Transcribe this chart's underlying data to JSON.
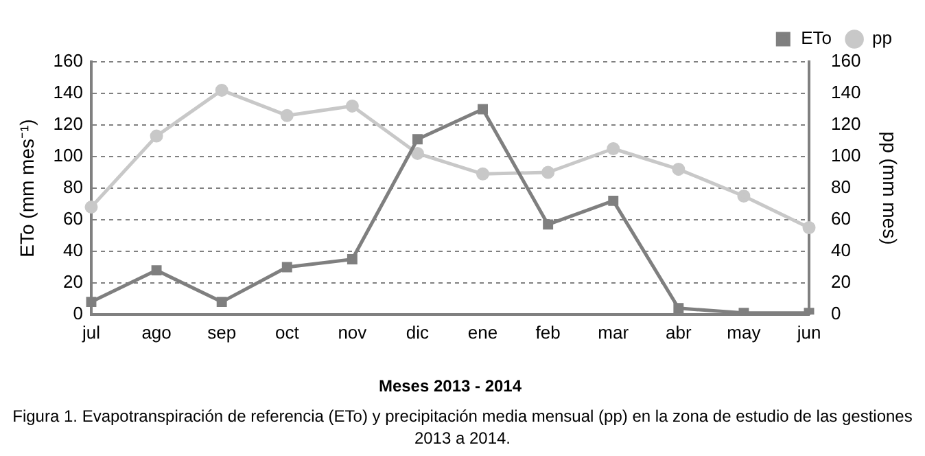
{
  "chart_data": {
    "type": "line",
    "xlabel": "Meses 2013 - 2014",
    "ylabel": "ETo (mm mes⁻¹)",
    "y2label": "pp (mm mes)",
    "categories": [
      "jul",
      "ago",
      "sep",
      "oct",
      "nov",
      "dic",
      "ene",
      "feb",
      "mar",
      "abr",
      "may",
      "jun"
    ],
    "series": [
      {
        "name": "ETo",
        "color": "#7f7f7f",
        "marker": "square",
        "values": [
          8,
          28,
          8,
          30,
          35,
          111,
          130,
          57,
          72,
          4,
          1,
          1
        ]
      },
      {
        "name": "pp",
        "color": "#c8c8c8",
        "marker": "circle",
        "axis": "y2",
        "values": [
          68,
          113,
          142,
          126,
          132,
          102,
          89,
          90,
          105,
          92,
          75,
          55
        ]
      }
    ],
    "ylim": [
      0,
      160
    ],
    "yticks": [
      0,
      20,
      40,
      60,
      80,
      100,
      120,
      140,
      160
    ],
    "y2lim": [
      0,
      160
    ],
    "y2ticks": [
      0,
      20,
      40,
      60,
      80,
      100,
      120,
      140,
      160
    ],
    "grid": "y",
    "legend": "top right",
    "line_style": "solid",
    "annotations": [
      "Figura 1. Evapotranspiración de referencia (ETo) y precipitación media mensual (pp) en la zona de estudio de las gestiones 2013 a 2014."
    ]
  }
}
